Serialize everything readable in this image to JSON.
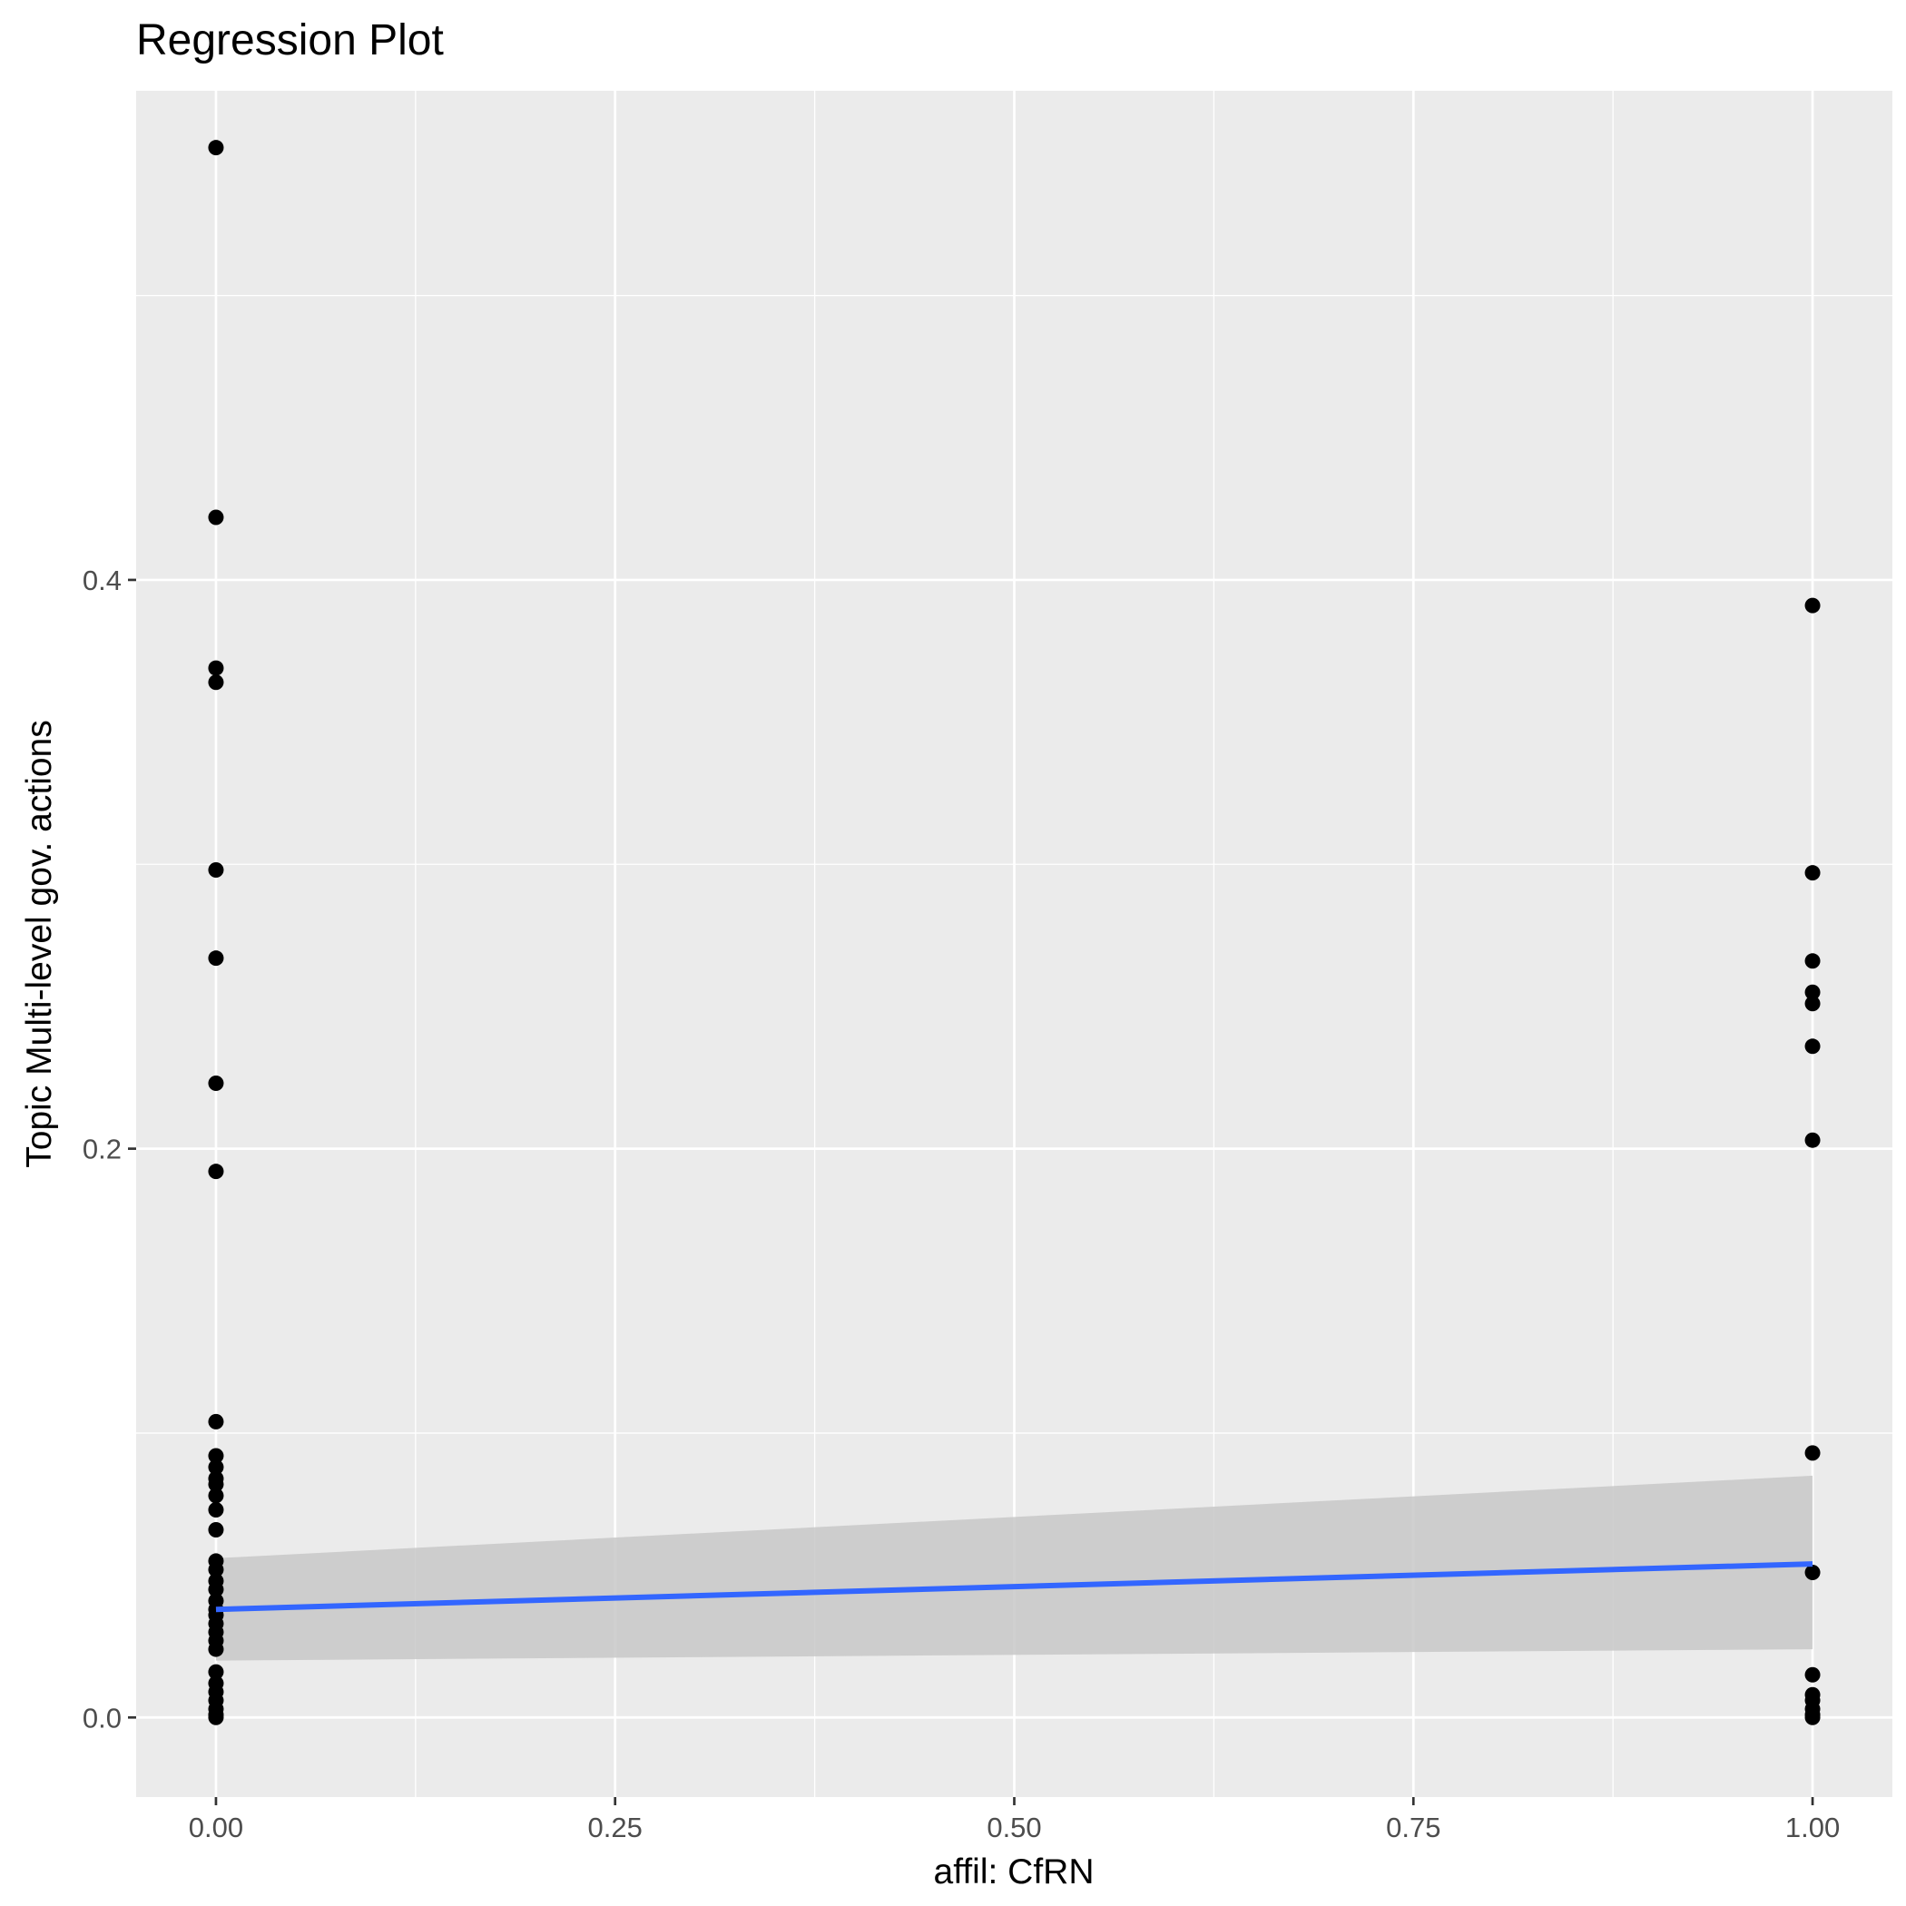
{
  "chart_data": {
    "type": "scatter",
    "title": "Regression Plot",
    "xlabel": "affil: CfRN",
    "ylabel": "Topic Multi-level gov. actions",
    "xlim": [
      -0.05,
      1.05
    ],
    "ylim": [
      -0.028,
      0.572
    ],
    "x_ticks": [
      {
        "value": 0.0,
        "label": "0.00"
      },
      {
        "value": 0.25,
        "label": "0.25"
      },
      {
        "value": 0.5,
        "label": "0.50"
      },
      {
        "value": 0.75,
        "label": "0.75"
      },
      {
        "value": 1.0,
        "label": "1.00"
      }
    ],
    "y_ticks": [
      {
        "value": 0.0,
        "label": "0.0"
      },
      {
        "value": 0.2,
        "label": "0.2"
      },
      {
        "value": 0.4,
        "label": "0.4"
      }
    ],
    "x_minor_grid": [
      0.125,
      0.375,
      0.625,
      0.875
    ],
    "y_minor_grid": [
      0.1,
      0.3,
      0.5
    ],
    "grid": true,
    "panel_background": "#ebebeb",
    "grid_color": "#ffffff",
    "point_color": "#000000",
    "line_color": "#3366ff",
    "band_color": "#c8c8c8",
    "points": [
      {
        "x": 0,
        "y": 0.552
      },
      {
        "x": 0,
        "y": 0.422
      },
      {
        "x": 0,
        "y": 0.369
      },
      {
        "x": 0,
        "y": 0.364
      },
      {
        "x": 0,
        "y": 0.298
      },
      {
        "x": 0,
        "y": 0.267
      },
      {
        "x": 0,
        "y": 0.223
      },
      {
        "x": 0,
        "y": 0.192
      },
      {
        "x": 0,
        "y": 0.104
      },
      {
        "x": 0,
        "y": 0.092
      },
      {
        "x": 0,
        "y": 0.088
      },
      {
        "x": 0,
        "y": 0.084
      },
      {
        "x": 0,
        "y": 0.082
      },
      {
        "x": 0,
        "y": 0.078
      },
      {
        "x": 0,
        "y": 0.073
      },
      {
        "x": 0,
        "y": 0.066
      },
      {
        "x": 0,
        "y": 0.055
      },
      {
        "x": 0,
        "y": 0.052
      },
      {
        "x": 0,
        "y": 0.048
      },
      {
        "x": 0,
        "y": 0.045
      },
      {
        "x": 0,
        "y": 0.041
      },
      {
        "x": 0,
        "y": 0.038
      },
      {
        "x": 0,
        "y": 0.036
      },
      {
        "x": 0,
        "y": 0.033
      },
      {
        "x": 0,
        "y": 0.03
      },
      {
        "x": 0,
        "y": 0.027
      },
      {
        "x": 0,
        "y": 0.024
      },
      {
        "x": 0,
        "y": 0.016
      },
      {
        "x": 0,
        "y": 0.012
      },
      {
        "x": 0,
        "y": 0.009
      },
      {
        "x": 0,
        "y": 0.006
      },
      {
        "x": 0,
        "y": 0.003
      },
      {
        "x": 0,
        "y": 0.001
      },
      {
        "x": 0,
        "y": 0.0
      },
      {
        "x": 1,
        "y": 0.391
      },
      {
        "x": 1,
        "y": 0.297
      },
      {
        "x": 1,
        "y": 0.266
      },
      {
        "x": 1,
        "y": 0.255
      },
      {
        "x": 1,
        "y": 0.251
      },
      {
        "x": 1,
        "y": 0.236
      },
      {
        "x": 1,
        "y": 0.203
      },
      {
        "x": 1,
        "y": 0.093
      },
      {
        "x": 1,
        "y": 0.051
      },
      {
        "x": 1,
        "y": 0.015
      },
      {
        "x": 1,
        "y": 0.008
      },
      {
        "x": 1,
        "y": 0.006
      },
      {
        "x": 1,
        "y": 0.003
      },
      {
        "x": 1,
        "y": 0.001
      },
      {
        "x": 1,
        "y": 0.0
      }
    ],
    "regression_line": {
      "x": [
        0,
        1
      ],
      "y": [
        0.038,
        0.054
      ]
    },
    "confidence_band": {
      "x": [
        0,
        1
      ],
      "lower": [
        0.02,
        0.024
      ],
      "upper": [
        0.056,
        0.085
      ]
    }
  }
}
